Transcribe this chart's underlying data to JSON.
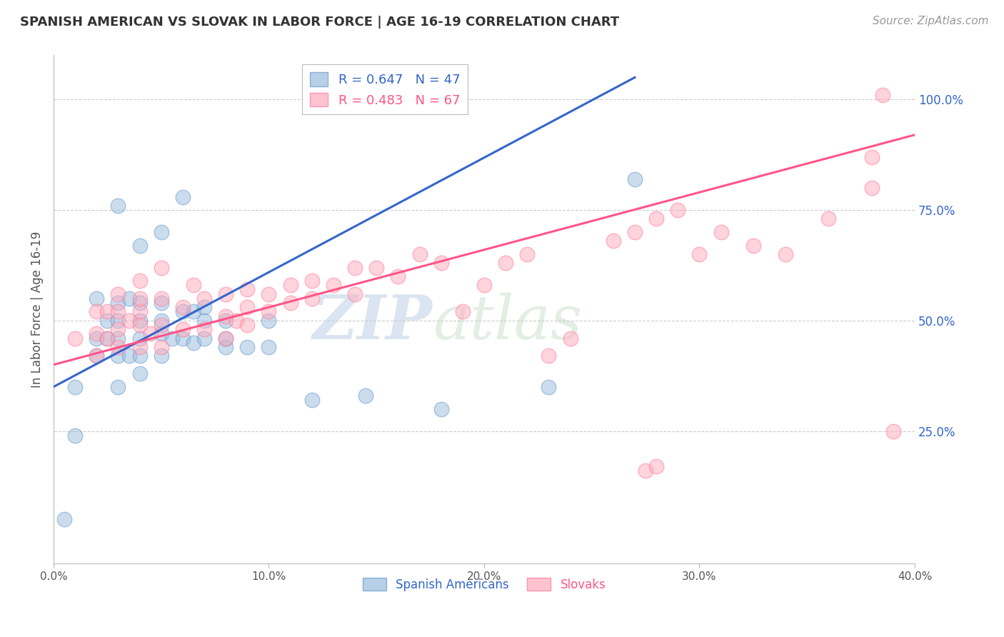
{
  "title": "SPANISH AMERICAN VS SLOVAK IN LABOR FORCE | AGE 16-19 CORRELATION CHART",
  "source_text": "Source: ZipAtlas.com",
  "ylabel": "In Labor Force | Age 16-19",
  "xlim": [
    0.0,
    0.4
  ],
  "ylim": [
    -0.05,
    1.1
  ],
  "xticks": [
    0.0,
    0.1,
    0.2,
    0.3,
    0.4
  ],
  "xtick_labels": [
    "0.0%",
    "10.0%",
    "20.0%",
    "30.0%",
    "40.0%"
  ],
  "yticks_right": [
    0.25,
    0.5,
    0.75,
    1.0
  ],
  "ytick_labels_right": [
    "25.0%",
    "50.0%",
    "75.0%",
    "100.0%"
  ],
  "grid_color": "#cccccc",
  "blue_color": "#99bbdd",
  "pink_color": "#ffaabb",
  "blue_edge": "#6699cc",
  "pink_edge": "#ff7799",
  "blue_line_color": "#3366cc",
  "pink_line_color": "#ff5588",
  "R_blue": 0.647,
  "N_blue": 47,
  "R_pink": 0.483,
  "N_pink": 67,
  "blue_label": "Spanish Americans",
  "pink_label": "Slovaks",
  "watermark_zip": "ZIP",
  "watermark_atlas": "atlas",
  "blue_line_x": [
    0.0,
    0.27
  ],
  "blue_line_y": [
    0.35,
    1.05
  ],
  "pink_line_x": [
    0.0,
    0.4
  ],
  "pink_line_y": [
    0.4,
    0.92
  ],
  "blue_x": [
    0.005,
    0.01,
    0.01,
    0.02,
    0.02,
    0.02,
    0.025,
    0.025,
    0.03,
    0.03,
    0.03,
    0.03,
    0.03,
    0.03,
    0.035,
    0.035,
    0.04,
    0.04,
    0.04,
    0.04,
    0.04,
    0.04,
    0.05,
    0.05,
    0.05,
    0.05,
    0.05,
    0.055,
    0.06,
    0.06,
    0.06,
    0.065,
    0.065,
    0.07,
    0.07,
    0.07,
    0.08,
    0.08,
    0.08,
    0.09,
    0.1,
    0.1,
    0.12,
    0.145,
    0.18,
    0.23,
    0.27
  ],
  "blue_y": [
    0.05,
    0.24,
    0.35,
    0.42,
    0.46,
    0.55,
    0.46,
    0.5,
    0.35,
    0.42,
    0.46,
    0.5,
    0.54,
    0.76,
    0.42,
    0.55,
    0.38,
    0.42,
    0.46,
    0.5,
    0.54,
    0.67,
    0.42,
    0.47,
    0.5,
    0.54,
    0.7,
    0.46,
    0.46,
    0.52,
    0.78,
    0.45,
    0.52,
    0.46,
    0.5,
    0.53,
    0.44,
    0.46,
    0.5,
    0.44,
    0.44,
    0.5,
    0.32,
    0.33,
    0.3,
    0.35,
    0.82
  ],
  "pink_x": [
    0.01,
    0.02,
    0.02,
    0.02,
    0.025,
    0.025,
    0.03,
    0.03,
    0.03,
    0.03,
    0.035,
    0.04,
    0.04,
    0.04,
    0.04,
    0.04,
    0.045,
    0.05,
    0.05,
    0.05,
    0.05,
    0.06,
    0.06,
    0.065,
    0.07,
    0.07,
    0.08,
    0.08,
    0.08,
    0.085,
    0.09,
    0.09,
    0.09,
    0.1,
    0.1,
    0.11,
    0.11,
    0.12,
    0.12,
    0.13,
    0.14,
    0.14,
    0.15,
    0.16,
    0.17,
    0.18,
    0.19,
    0.2,
    0.21,
    0.22,
    0.23,
    0.24,
    0.26,
    0.27,
    0.275,
    0.28,
    0.28,
    0.29,
    0.3,
    0.31,
    0.325,
    0.34,
    0.36,
    0.38,
    0.38,
    0.385,
    0.39
  ],
  "pink_y": [
    0.46,
    0.42,
    0.47,
    0.52,
    0.46,
    0.52,
    0.44,
    0.48,
    0.52,
    0.56,
    0.5,
    0.44,
    0.49,
    0.52,
    0.55,
    0.59,
    0.47,
    0.44,
    0.49,
    0.55,
    0.62,
    0.48,
    0.53,
    0.58,
    0.48,
    0.55,
    0.46,
    0.51,
    0.56,
    0.5,
    0.49,
    0.53,
    0.57,
    0.52,
    0.56,
    0.54,
    0.58,
    0.55,
    0.59,
    0.58,
    0.56,
    0.62,
    0.62,
    0.6,
    0.65,
    0.63,
    0.52,
    0.58,
    0.63,
    0.65,
    0.42,
    0.46,
    0.68,
    0.7,
    0.16,
    0.17,
    0.73,
    0.75,
    0.65,
    0.7,
    0.67,
    0.65,
    0.73,
    0.8,
    0.87,
    1.01,
    0.25
  ]
}
